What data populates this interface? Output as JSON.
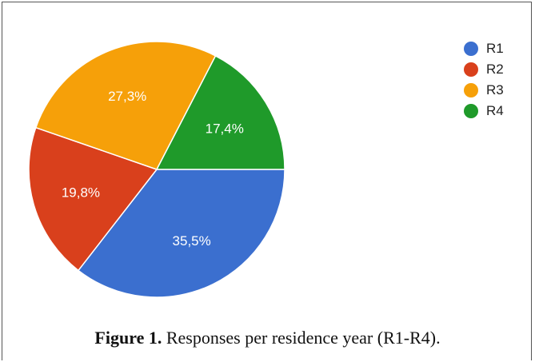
{
  "chart_data": {
    "type": "pie",
    "categories": [
      "R1",
      "R2",
      "R3",
      "R4"
    ],
    "values": [
      35.5,
      19.8,
      27.3,
      17.4
    ],
    "labels": [
      "35,5%",
      "19,8%",
      "27,3%",
      "17,4%"
    ],
    "colors": [
      "#3b6fcf",
      "#d9401c",
      "#f6a009",
      "#1f9a2a"
    ],
    "legend_position": "top-right",
    "start_angle": "3 o'clock, clockwise"
  },
  "legend": [
    {
      "label": "R1",
      "color": "#3b6fcf"
    },
    {
      "label": "R2",
      "color": "#d9401c"
    },
    {
      "label": "R3",
      "color": "#f6a009"
    },
    {
      "label": "R4",
      "color": "#1f9a2a"
    }
  ],
  "caption": {
    "label": "Figure 1.",
    "text": " Responses per residence year (R1-R4)."
  }
}
